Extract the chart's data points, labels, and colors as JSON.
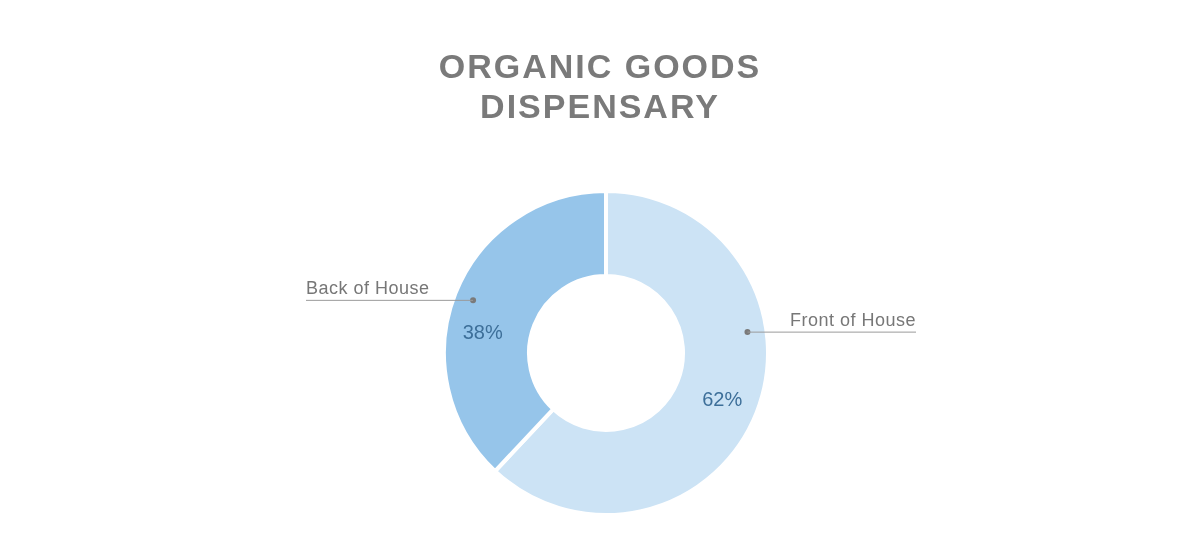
{
  "chart_data": {
    "type": "donut",
    "title": "ORGANIC GOODS DISPENSARY",
    "categories": [
      "Front of House",
      "Back of House"
    ],
    "values": [
      62,
      38
    ],
    "value_labels": [
      "62%",
      "38%"
    ],
    "colors": [
      "#cce3f5",
      "#96c5ea"
    ]
  }
}
